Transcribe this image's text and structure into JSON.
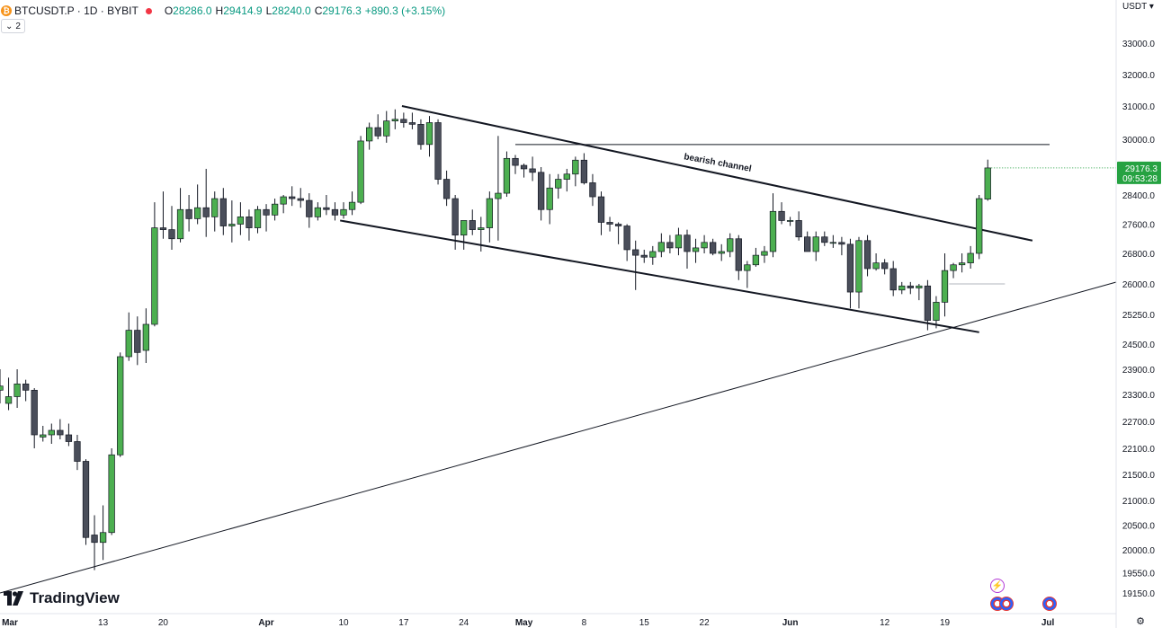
{
  "header": {
    "symbol_line": "BTCUSDT.P · 1D · BYBIT",
    "open_label": "O",
    "open": "28286.0",
    "high_label": "H",
    "high": "29414.9",
    "low_label": "L",
    "low": "28240.0",
    "close_label": "C",
    "close": "29176.3",
    "change": "+890.3 (+3.15%)"
  },
  "indicator_count": "2",
  "currency": "USDT",
  "logo_text": "TradingView",
  "price_badge": {
    "price": "29176.3",
    "countdown": "09:53:28"
  },
  "colors": {
    "up": "#4caf50",
    "down": "#4a4e5a",
    "wick": "#131722",
    "badge_bg": "#26a242",
    "axis_text": "#131722"
  },
  "icons": [
    "bitcoin-icon",
    "live-dot-icon",
    "chevron-down-icon",
    "tradingview-logo-icon",
    "lightning-event-icon",
    "us-flag-event-icon",
    "settings-icon"
  ],
  "chart_data": {
    "type": "candlestick",
    "symbol": "BTCUSDT.P",
    "interval": "1D",
    "y_ticks": [
      "33000.0",
      "32000.0",
      "31000.0",
      "30000.0",
      "29176.3",
      "28400.0",
      "27600.0",
      "26800.0",
      "26000.0",
      "25250.0",
      "24500.0",
      "23900.0",
      "23300.0",
      "22700.0",
      "22100.0",
      "21500.0",
      "21000.0",
      "20500.0",
      "20000.0",
      "19550.0",
      "19150.0"
    ],
    "x_ticks": [
      "Mar",
      "13",
      "20",
      "Apr",
      "10",
      "17",
      "24",
      "May",
      "8",
      "15",
      "22",
      "Jun",
      "12",
      "19",
      "Jul"
    ],
    "annotation": "bearish channel",
    "candles": [
      {
        "o": 23400,
        "h": 23900,
        "l": 23100,
        "c": 23500
      },
      {
        "o": 23100,
        "h": 23700,
        "l": 22950,
        "c": 23250
      },
      {
        "o": 23250,
        "h": 23900,
        "l": 23000,
        "c": 23550
      },
      {
        "o": 23550,
        "h": 23650,
        "l": 23150,
        "c": 23400
      },
      {
        "o": 23400,
        "h": 23450,
        "l": 22100,
        "c": 22400
      },
      {
        "o": 22350,
        "h": 22600,
        "l": 22250,
        "c": 22400
      },
      {
        "o": 22400,
        "h": 22650,
        "l": 22200,
        "c": 22500
      },
      {
        "o": 22500,
        "h": 22750,
        "l": 22300,
        "c": 22400
      },
      {
        "o": 22400,
        "h": 22650,
        "l": 22150,
        "c": 22250
      },
      {
        "o": 22250,
        "h": 22400,
        "l": 21600,
        "c": 21800
      },
      {
        "o": 21800,
        "h": 21850,
        "l": 20100,
        "c": 20250
      },
      {
        "o": 20300,
        "h": 20700,
        "l": 19600,
        "c": 20150
      },
      {
        "o": 20150,
        "h": 20900,
        "l": 19800,
        "c": 20350
      },
      {
        "o": 20350,
        "h": 22100,
        "l": 20300,
        "c": 21950
      },
      {
        "o": 21950,
        "h": 24300,
        "l": 21900,
        "c": 24200
      },
      {
        "o": 24200,
        "h": 25300,
        "l": 24100,
        "c": 24850
      },
      {
        "o": 24850,
        "h": 25200,
        "l": 24000,
        "c": 24300
      },
      {
        "o": 24350,
        "h": 25400,
        "l": 24050,
        "c": 25000
      },
      {
        "o": 25000,
        "h": 28200,
        "l": 24950,
        "c": 27500
      },
      {
        "o": 27500,
        "h": 28500,
        "l": 27200,
        "c": 27450
      },
      {
        "o": 27450,
        "h": 28100,
        "l": 26900,
        "c": 27200
      },
      {
        "o": 27200,
        "h": 28600,
        "l": 27100,
        "c": 28000
      },
      {
        "o": 28000,
        "h": 28400,
        "l": 27400,
        "c": 27750
      },
      {
        "o": 27750,
        "h": 28700,
        "l": 27600,
        "c": 28050
      },
      {
        "o": 28050,
        "h": 29150,
        "l": 27250,
        "c": 27800
      },
      {
        "o": 27800,
        "h": 28500,
        "l": 27400,
        "c": 28300
      },
      {
        "o": 28300,
        "h": 28600,
        "l": 27300,
        "c": 27550
      },
      {
        "o": 27550,
        "h": 28250,
        "l": 27100,
        "c": 27600
      },
      {
        "o": 27600,
        "h": 28200,
        "l": 27300,
        "c": 27800
      },
      {
        "o": 27800,
        "h": 28000,
        "l": 27150,
        "c": 27500
      },
      {
        "o": 27500,
        "h": 28100,
        "l": 27350,
        "c": 28000
      },
      {
        "o": 28000,
        "h": 28150,
        "l": 27400,
        "c": 27850
      },
      {
        "o": 27850,
        "h": 28300,
        "l": 27700,
        "c": 28150
      },
      {
        "o": 28150,
        "h": 28400,
        "l": 27900,
        "c": 28350
      },
      {
        "o": 28350,
        "h": 28650,
        "l": 28100,
        "c": 28300
      },
      {
        "o": 28300,
        "h": 28600,
        "l": 28050,
        "c": 28250
      },
      {
        "o": 28250,
        "h": 28450,
        "l": 27500,
        "c": 27800
      },
      {
        "o": 27800,
        "h": 28200,
        "l": 27700,
        "c": 28050
      },
      {
        "o": 28050,
        "h": 28400,
        "l": 27850,
        "c": 28000
      },
      {
        "o": 28000,
        "h": 28200,
        "l": 27700,
        "c": 27850
      },
      {
        "o": 27850,
        "h": 28200,
        "l": 27750,
        "c": 28000
      },
      {
        "o": 28000,
        "h": 28500,
        "l": 27850,
        "c": 28200
      },
      {
        "o": 28200,
        "h": 30100,
        "l": 28150,
        "c": 29950
      },
      {
        "o": 29950,
        "h": 30500,
        "l": 29700,
        "c": 30350
      },
      {
        "o": 30350,
        "h": 30750,
        "l": 30000,
        "c": 30100
      },
      {
        "o": 30100,
        "h": 30850,
        "l": 29900,
        "c": 30550
      },
      {
        "o": 30550,
        "h": 30900,
        "l": 30300,
        "c": 30600
      },
      {
        "o": 30600,
        "h": 30800,
        "l": 30350,
        "c": 30500
      },
      {
        "o": 30500,
        "h": 30800,
        "l": 30300,
        "c": 30450
      },
      {
        "o": 30450,
        "h": 30600,
        "l": 29700,
        "c": 29850
      },
      {
        "o": 29850,
        "h": 30700,
        "l": 29500,
        "c": 30500
      },
      {
        "o": 30500,
        "h": 30600,
        "l": 28700,
        "c": 28850
      },
      {
        "o": 28850,
        "h": 29100,
        "l": 28100,
        "c": 28300
      },
      {
        "o": 28300,
        "h": 28400,
        "l": 26900,
        "c": 27300
      },
      {
        "o": 27300,
        "h": 27600,
        "l": 26900,
        "c": 27700
      },
      {
        "o": 27700,
        "h": 28000,
        "l": 27300,
        "c": 27450
      },
      {
        "o": 27450,
        "h": 27800,
        "l": 26850,
        "c": 27500
      },
      {
        "o": 27500,
        "h": 28500,
        "l": 27100,
        "c": 28300
      },
      {
        "o": 28300,
        "h": 30100,
        "l": 27150,
        "c": 28450
      },
      {
        "o": 28450,
        "h": 29650,
        "l": 28350,
        "c": 29450
      },
      {
        "o": 29450,
        "h": 29550,
        "l": 29000,
        "c": 29250
      },
      {
        "o": 29250,
        "h": 29300,
        "l": 28900,
        "c": 29150
      },
      {
        "o": 29150,
        "h": 29500,
        "l": 28800,
        "c": 29050
      },
      {
        "o": 29050,
        "h": 29200,
        "l": 27700,
        "c": 28000
      },
      {
        "o": 28000,
        "h": 29000,
        "l": 27600,
        "c": 28600
      },
      {
        "o": 28600,
        "h": 29000,
        "l": 28300,
        "c": 28850
      },
      {
        "o": 28850,
        "h": 29150,
        "l": 28500,
        "c": 29000
      },
      {
        "o": 29000,
        "h": 29500,
        "l": 28650,
        "c": 29400
      },
      {
        "o": 29400,
        "h": 29600,
        "l": 28700,
        "c": 28750
      },
      {
        "o": 28750,
        "h": 29000,
        "l": 28100,
        "c": 28350
      },
      {
        "o": 28350,
        "h": 28500,
        "l": 27300,
        "c": 27650
      },
      {
        "o": 27650,
        "h": 27800,
        "l": 27400,
        "c": 27600
      },
      {
        "o": 27600,
        "h": 27650,
        "l": 27050,
        "c": 27550
      },
      {
        "o": 27550,
        "h": 27600,
        "l": 26600,
        "c": 26900
      },
      {
        "o": 26900,
        "h": 27150,
        "l": 25850,
        "c": 26750
      },
      {
        "o": 26750,
        "h": 26900,
        "l": 26550,
        "c": 26700
      },
      {
        "o": 26700,
        "h": 27000,
        "l": 26500,
        "c": 26850
      },
      {
        "o": 26850,
        "h": 27350,
        "l": 26700,
        "c": 27100
      },
      {
        "o": 27100,
        "h": 27300,
        "l": 26800,
        "c": 26950
      },
      {
        "o": 26950,
        "h": 27500,
        "l": 26750,
        "c": 27300
      },
      {
        "o": 27300,
        "h": 27450,
        "l": 26400,
        "c": 26850
      },
      {
        "o": 26850,
        "h": 27200,
        "l": 26550,
        "c": 26950
      },
      {
        "o": 26950,
        "h": 27300,
        "l": 26800,
        "c": 27100
      },
      {
        "o": 27100,
        "h": 27200,
        "l": 26750,
        "c": 26800
      },
      {
        "o": 26800,
        "h": 27050,
        "l": 26600,
        "c": 26850
      },
      {
        "o": 26850,
        "h": 27350,
        "l": 26700,
        "c": 27200
      },
      {
        "o": 27200,
        "h": 27300,
        "l": 26100,
        "c": 26350
      },
      {
        "o": 26350,
        "h": 26600,
        "l": 25900,
        "c": 26500
      },
      {
        "o": 26500,
        "h": 26950,
        "l": 26450,
        "c": 26750
      },
      {
        "o": 26750,
        "h": 27000,
        "l": 26550,
        "c": 26850
      },
      {
        "o": 26850,
        "h": 28450,
        "l": 26700,
        "c": 27950
      },
      {
        "o": 27950,
        "h": 28200,
        "l": 27600,
        "c": 27700
      },
      {
        "o": 27700,
        "h": 27800,
        "l": 27550,
        "c": 27700
      },
      {
        "o": 27700,
        "h": 27950,
        "l": 27150,
        "c": 27250
      },
      {
        "o": 27250,
        "h": 27400,
        "l": 26850,
        "c": 26850
      },
      {
        "o": 26850,
        "h": 27400,
        "l": 26600,
        "c": 27250
      },
      {
        "o": 27250,
        "h": 27400,
        "l": 27000,
        "c": 27100
      },
      {
        "o": 27100,
        "h": 27300,
        "l": 26950,
        "c": 27100
      },
      {
        "o": 27100,
        "h": 27250,
        "l": 26750,
        "c": 27050
      },
      {
        "o": 27050,
        "h": 27200,
        "l": 25400,
        "c": 25800
      },
      {
        "o": 25800,
        "h": 27250,
        "l": 25400,
        "c": 27150
      },
      {
        "o": 27150,
        "h": 27300,
        "l": 26200,
        "c": 26400
      },
      {
        "o": 26400,
        "h": 26800,
        "l": 26350,
        "c": 26550
      },
      {
        "o": 26550,
        "h": 26650,
        "l": 26250,
        "c": 26400
      },
      {
        "o": 26400,
        "h": 26600,
        "l": 25700,
        "c": 25850
      },
      {
        "o": 25850,
        "h": 26050,
        "l": 25750,
        "c": 25950
      },
      {
        "o": 25950,
        "h": 26050,
        "l": 25750,
        "c": 25900
      },
      {
        "o": 25900,
        "h": 26000,
        "l": 25600,
        "c": 25950
      },
      {
        "o": 25950,
        "h": 26100,
        "l": 24850,
        "c": 25100
      },
      {
        "o": 25100,
        "h": 25700,
        "l": 24900,
        "c": 25550
      },
      {
        "o": 25550,
        "h": 26800,
        "l": 25200,
        "c": 26350
      },
      {
        "o": 26350,
        "h": 26550,
        "l": 26150,
        "c": 26500
      },
      {
        "o": 26500,
        "h": 26800,
        "l": 26300,
        "c": 26550
      },
      {
        "o": 26550,
        "h": 27000,
        "l": 26400,
        "c": 26800
      },
      {
        "o": 26800,
        "h": 28400,
        "l": 26650,
        "c": 28300
      },
      {
        "o": 28286,
        "h": 29414.9,
        "l": 28240,
        "c": 29176.3
      }
    ]
  }
}
